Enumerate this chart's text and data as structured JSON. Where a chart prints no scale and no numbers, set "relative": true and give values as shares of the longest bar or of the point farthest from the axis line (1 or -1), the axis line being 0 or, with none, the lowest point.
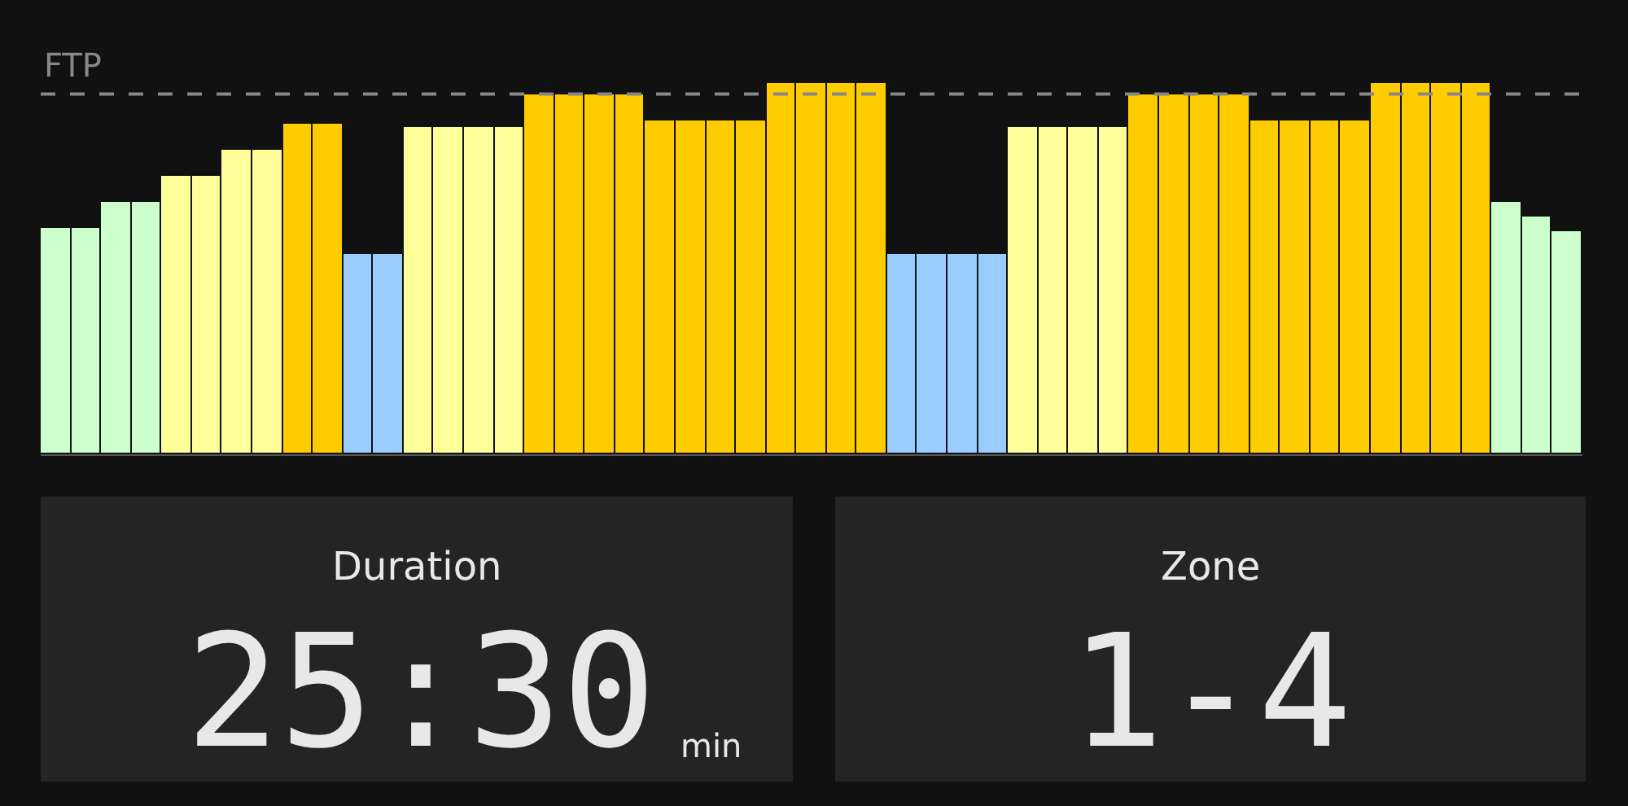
{
  "chart_data": {
    "type": "bar",
    "relative": true,
    "categories": [
      null,
      null,
      null,
      null,
      null,
      null,
      null,
      null,
      null,
      null,
      null,
      null,
      null,
      null,
      null,
      null,
      null,
      null,
      null,
      null,
      null,
      null,
      null,
      null,
      null,
      null,
      null,
      null,
      null,
      null,
      null,
      null,
      null,
      null,
      null,
      null,
      null,
      null,
      null,
      null,
      null,
      null,
      null,
      null,
      null,
      null,
      null,
      null,
      null,
      null,
      null
    ],
    "values": [
      0.61,
      0.61,
      0.68,
      0.68,
      0.75,
      0.75,
      0.82,
      0.82,
      0.89,
      0.89,
      0.54,
      0.54,
      0.88,
      0.88,
      0.88,
      0.88,
      0.97,
      0.97,
      0.97,
      0.97,
      0.9,
      0.9,
      0.9,
      0.9,
      1,
      1,
      1,
      1,
      0.54,
      0.54,
      0.54,
      0.54,
      0.88,
      0.88,
      0.88,
      0.88,
      0.97,
      0.97,
      0.97,
      0.97,
      0.9,
      0.9,
      0.9,
      0.9,
      1,
      1,
      1,
      1,
      0.68,
      0.64,
      0.6
    ],
    "colors": [
      "#ccffcc",
      "#ccffcc",
      "#ccffcc",
      "#ccffcc",
      "#ffff99",
      "#ffff99",
      "#ffff99",
      "#ffff99",
      "#ffcc00",
      "#ffcc00",
      "#99ccff",
      "#99ccff",
      "#ffff99",
      "#ffff99",
      "#ffff99",
      "#ffff99",
      "#ffcc00",
      "#ffcc00",
      "#ffcc00",
      "#ffcc00",
      "#ffcc00",
      "#ffcc00",
      "#ffcc00",
      "#ffcc00",
      "#ffcc00",
      "#ffcc00",
      "#ffcc00",
      "#ffcc00",
      "#99ccff",
      "#99ccff",
      "#99ccff",
      "#99ccff",
      "#ffff99",
      "#ffff99",
      "#ffff99",
      "#ffff99",
      "#ffcc00",
      "#ffcc00",
      "#ffcc00",
      "#ffcc00",
      "#ffcc00",
      "#ffcc00",
      "#ffcc00",
      "#ffcc00",
      "#ffcc00",
      "#ffcc00",
      "#ffcc00",
      "#ffcc00",
      "#ccffcc",
      "#ccffcc",
      "#ccffcc"
    ],
    "ref_lines": [
      {
        "axis": "y",
        "value": 0.97,
        "label": "FTP",
        "color": "#888888",
        "line_style": "dashed"
      }
    ],
    "annotations": [
      "Duration",
      "25:30",
      "min",
      "Zone",
      "1-4"
    ]
  }
}
